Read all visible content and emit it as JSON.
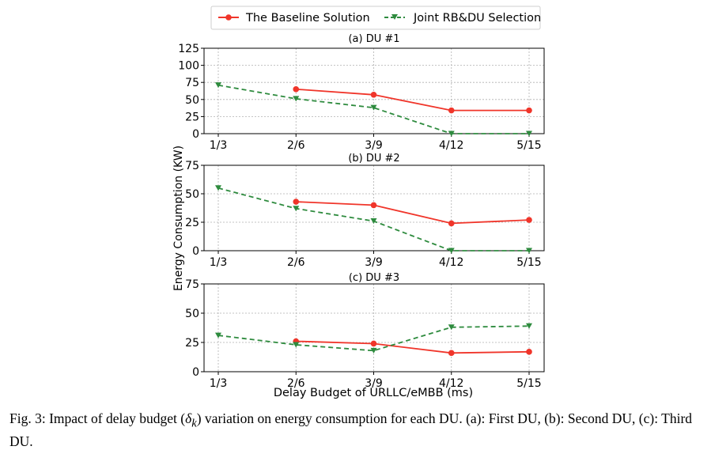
{
  "colors": {
    "baseline": "#f0352a",
    "joint": "#2e8b3e",
    "grid": "#b0b0b0"
  },
  "legend": {
    "baseline": "The Baseline Solution",
    "joint": "Joint RB&DU Selection"
  },
  "ylabel": "Energy Consumption (KW)",
  "xlabel": "Delay Budget of URLLC/eMBB (ms)",
  "caption": {
    "prefix": "Fig. 3:  Impact of delay budget (",
    "symbol": "δ",
    "subscript": "k",
    "suffix": ") variation on energy consumption for each DU. (a): First DU, (b): Second DU, (c): Third DU."
  },
  "chart_data": [
    {
      "type": "line",
      "title": "(a) DU #1",
      "categories": [
        "1/3",
        "2/6",
        "3/9",
        "4/12",
        "5/15"
      ],
      "ylim": [
        0,
        125
      ],
      "yticks": [
        0,
        25,
        50,
        75,
        100,
        125
      ],
      "grid": true,
      "legend_position": "top-center",
      "series": [
        {
          "name": "The Baseline Solution",
          "marker": "circle",
          "values": [
            null,
            65,
            57,
            34,
            34
          ]
        },
        {
          "name": "Joint RB&DU Selection",
          "marker": "triangle-down",
          "dashed": true,
          "values": [
            71,
            51,
            38,
            0,
            0
          ]
        }
      ]
    },
    {
      "type": "line",
      "title": "(b) DU #2",
      "categories": [
        "1/3",
        "2/6",
        "3/9",
        "4/12",
        "5/15"
      ],
      "ylim": [
        0,
        75
      ],
      "yticks": [
        0,
        25,
        50,
        75
      ],
      "grid": true,
      "series": [
        {
          "name": "The Baseline Solution",
          "marker": "circle",
          "values": [
            null,
            43,
            40,
            24,
            27
          ]
        },
        {
          "name": "Joint RB&DU Selection",
          "marker": "triangle-down",
          "dashed": true,
          "values": [
            55,
            37,
            26,
            0,
            0
          ]
        }
      ]
    },
    {
      "type": "line",
      "title": "(c) DU #3",
      "categories": [
        "1/3",
        "2/6",
        "3/9",
        "4/12",
        "5/15"
      ],
      "ylim": [
        0,
        75
      ],
      "yticks": [
        0,
        25,
        50,
        75
      ],
      "grid": true,
      "series": [
        {
          "name": "The Baseline Solution",
          "marker": "circle",
          "values": [
            null,
            26,
            24,
            16,
            17
          ]
        },
        {
          "name": "Joint RB&DU Selection",
          "marker": "triangle-down",
          "dashed": true,
          "values": [
            31,
            23,
            18,
            38,
            39
          ]
        }
      ]
    }
  ]
}
